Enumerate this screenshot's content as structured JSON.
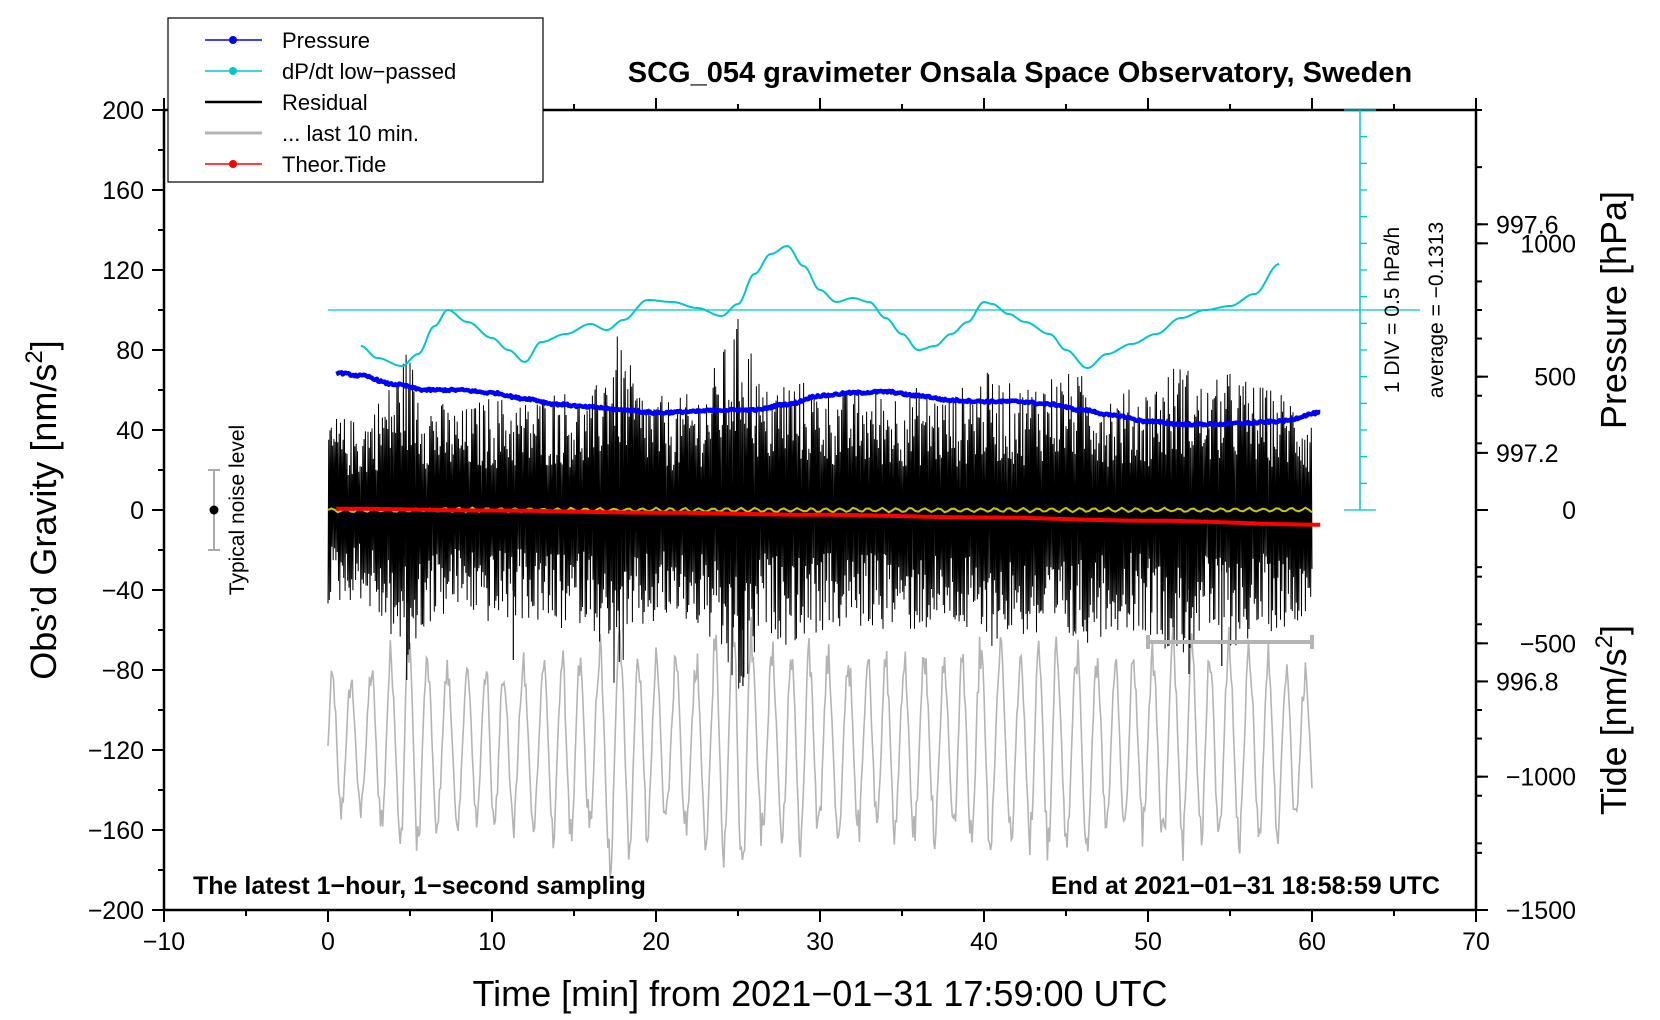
{
  "chart_data": {
    "type": "line",
    "title": "SCG_054 gravimeter Onsala Space Observatory, Sweden",
    "xlabel": "Time [min] from 2021−01−31 17:59:00 UTC",
    "ylabel_left": "Obs’d Gravity [nm/s",
    "ylabel_left_sup": "2",
    "ylabel_left_close": "]",
    "ylabel_pressure": "Pressure [hPa]",
    "ylabel_tide": "Tide [nm/s",
    "ylabel_tide_sup": "2",
    "ylabel_tide_close": "]",
    "xlim": [
      -10,
      70
    ],
    "ylim": [
      -200,
      200
    ],
    "pressure_lim": [
      996.4,
      997.8
    ],
    "tide_lim": [
      -1500,
      1500
    ],
    "x_ticks": [
      -10,
      0,
      10,
      20,
      30,
      40,
      50,
      60,
      70
    ],
    "x_tick_labels": [
      "−10",
      "0",
      "10",
      "20",
      "30",
      "40",
      "50",
      "60",
      "70"
    ],
    "y_ticks": [
      -200,
      -160,
      -120,
      -80,
      -40,
      0,
      40,
      80,
      120,
      160,
      200
    ],
    "y_tick_labels": [
      "−200",
      "−160",
      "−120",
      "−80",
      "−40",
      "0",
      "40",
      "80",
      "120",
      "160",
      "200"
    ],
    "pressure_ticks": [
      996.8,
      997.2,
      997.6
    ],
    "pressure_tick_labels": [
      "996.8",
      "997.2",
      "997.6"
    ],
    "tide_ticks": [
      -1500,
      -1000,
      -500,
      0,
      500,
      1000
    ],
    "tide_tick_labels": [
      "−1500",
      "−1000",
      "−500",
      "0",
      "500",
      "1000"
    ],
    "legend": [
      {
        "name": "Pressure",
        "color": "#0000ff",
        "style": "line-dot"
      },
      {
        "name": "dP/dt low−passed",
        "color": "#00c8c8",
        "style": "line-dot"
      },
      {
        "name": "Residual",
        "color": "#000000",
        "style": "line"
      },
      {
        "name": "... last 10 min.",
        "color": "#b4b4b4",
        "style": "line"
      },
      {
        "name": "Theor.Tide",
        "color": "#ff0000",
        "style": "line-dot"
      }
    ],
    "legend_position": "top-left",
    "annotations": {
      "noise": "Typical noise level",
      "noise_range": [
        -20,
        20
      ],
      "dpdt_scale": "1 DIV = 0.5 hPa/h",
      "dpdt_average": "average = −0.1313",
      "bottom_left": "The latest 1−hour, 1−second sampling",
      "bottom_right": "End at 2021−01−31 18:58:59 UTC",
      "last10_range": [
        50,
        60
      ]
    },
    "series": [
      {
        "name": "Pressure",
        "axis": "pressure",
        "color": "#0000ff",
        "x": [
          0.5,
          2,
          4,
          6,
          8,
          10,
          12,
          14,
          16,
          18,
          20,
          22,
          24,
          26,
          28,
          30,
          32,
          34,
          36,
          38,
          40,
          42,
          44,
          46,
          48,
          50,
          52,
          54,
          56,
          58,
          60.5
        ],
        "y": [
          997.34,
          997.335,
          997.32,
          997.31,
          997.31,
          997.305,
          997.295,
          997.285,
          997.28,
          997.275,
          997.27,
          997.272,
          997.275,
          997.275,
          997.285,
          997.3,
          997.305,
          997.307,
          997.3,
          997.292,
          997.29,
          997.29,
          997.285,
          997.275,
          997.265,
          997.255,
          997.25,
          997.25,
          997.252,
          997.255,
          997.27
        ]
      },
      {
        "name": "dP/dt low−passed",
        "axis": "gravity",
        "color": "#00c8c8",
        "x": [
          2,
          3,
          4.5,
          5.5,
          6.5,
          7.3,
          8.5,
          10,
          11,
          12,
          13,
          14.5,
          16,
          17,
          18,
          19.5,
          21,
          22.5,
          24,
          25,
          26,
          27,
          28,
          29,
          30,
          31,
          32,
          33,
          34,
          35,
          36,
          37,
          38,
          39,
          40,
          40.5,
          41.5,
          42.5,
          44,
          45,
          46.3,
          47.5,
          49,
          50.5,
          52,
          53.5,
          55,
          56.5,
          58
        ],
        "y": [
          82,
          76,
          72,
          78,
          92,
          100,
          94,
          86,
          80,
          74,
          84,
          88,
          93,
          90,
          95,
          105,
          104,
          101,
          97,
          103,
          118,
          128,
          132,
          122,
          110,
          104,
          106,
          104,
          96,
          88,
          80,
          82,
          88,
          94,
          104,
          103,
          98,
          94,
          88,
          80,
          71,
          78,
          83,
          88,
          96,
          100,
          102,
          108,
          123
        ]
      },
      {
        "name": "Theor.Tide",
        "axis": "tide",
        "color": "#ff0000",
        "x": [
          0.5,
          10,
          20,
          30,
          40,
          50,
          60.5
        ],
        "y": [
          5,
          -2,
          -10,
          -18,
          -28,
          -40,
          -55
        ]
      }
    ],
    "residual_envelope": {
      "x": [
        0,
        2,
        4,
        4.8,
        6,
        8,
        10,
        12,
        14,
        16,
        17.5,
        19,
        21,
        23,
        25.3,
        26.5,
        28,
        30,
        32,
        34,
        36,
        38,
        40,
        42,
        44,
        46,
        48,
        50,
        52,
        53.5,
        55,
        57,
        59,
        60
      ],
      "y": [
        48,
        45,
        66,
        82,
        58,
        50,
        58,
        55,
        62,
        55,
        90,
        62,
        55,
        62,
        102,
        60,
        68,
        62,
        60,
        60,
        62,
        58,
        70,
        62,
        70,
        68,
        60,
        62,
        76,
        62,
        70,
        62,
        58,
        46
      ],
      "negative_peaks": [
        {
          "x": 4.8,
          "y": -85
        },
        {
          "x": 11.3,
          "y": -75
        },
        {
          "x": 25.3,
          "y": -88
        },
        {
          "x": 52.5,
          "y": -82
        },
        {
          "x": 54.5,
          "y": -78
        }
      ]
    },
    "smoothed_residual": {
      "color": "#c8c800",
      "level": 0
    },
    "last10_color": "#b4b4b4"
  }
}
